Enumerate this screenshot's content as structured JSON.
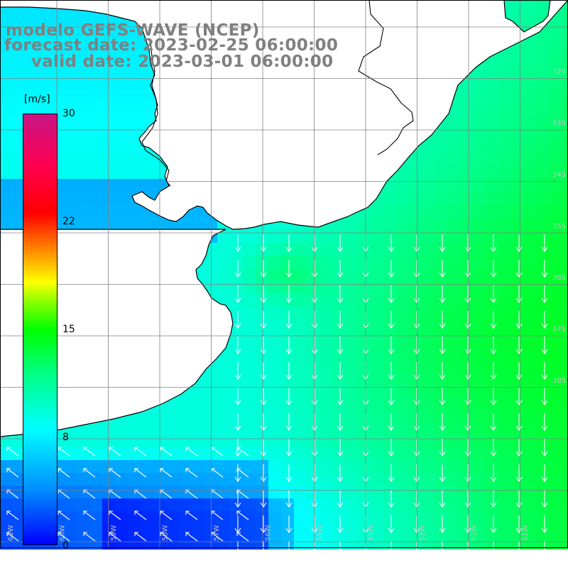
{
  "title": {
    "model": "modelo GEFS-WAVE (NCEP)",
    "forecast": "forecast date: 2023-02-25 06:00:00",
    "valid": "valid date: 2023-03-01 06:00:00"
  },
  "colorbar": {
    "unit": "[m/s]",
    "ticks": [
      "30",
      "22",
      "15",
      "8",
      "0"
    ],
    "min": 0,
    "max": 30
  },
  "lat_labels": [
    "32S",
    "33S",
    "34S",
    "35S",
    "36S",
    "37S",
    "38S"
  ],
  "lon_labels": [
    "61W",
    "60W",
    "59W",
    "58W",
    "57W",
    "56W",
    "55W",
    "54W",
    "53W",
    "52W",
    "51W"
  ],
  "colors": {
    "land": "#ffffff",
    "coast": "#000000",
    "grid": "#808080",
    "arrow": "#ffffff",
    "title": "#808080"
  },
  "wind": {
    "dominant_direction": "from north (arrows pointing south)",
    "max_region": "offshore east-southeast",
    "speed_range": [
      0,
      14
    ]
  }
}
